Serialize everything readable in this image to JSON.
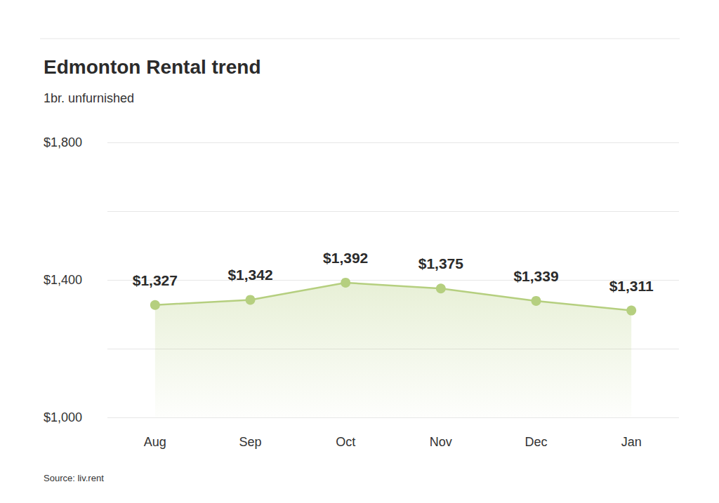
{
  "chart_data": {
    "type": "line",
    "title": "Edmonton Rental trend",
    "subtitle": "1br. unfurnished",
    "source": "Source: liv.rent",
    "categories": [
      "Aug",
      "Sep",
      "Oct",
      "Nov",
      "Dec",
      "Jan"
    ],
    "values": [
      1327,
      1342,
      1392,
      1375,
      1339,
      1311
    ],
    "value_labels": [
      "$1,327",
      "$1,342",
      "$1,392",
      "$1,375",
      "$1,339",
      "$1,311"
    ],
    "color": "#b5cf7f",
    "ylim": [
      1000,
      1800
    ],
    "yticks": [
      {
        "value": 1000,
        "label": "$1,000"
      },
      {
        "value": 1200,
        "label": null
      },
      {
        "value": 1400,
        "label": "$1,400"
      },
      {
        "value": 1600,
        "label": null
      },
      {
        "value": 1800,
        "label": "$1,800"
      }
    ],
    "grid": true,
    "data_labels": true,
    "marker": "circle"
  }
}
